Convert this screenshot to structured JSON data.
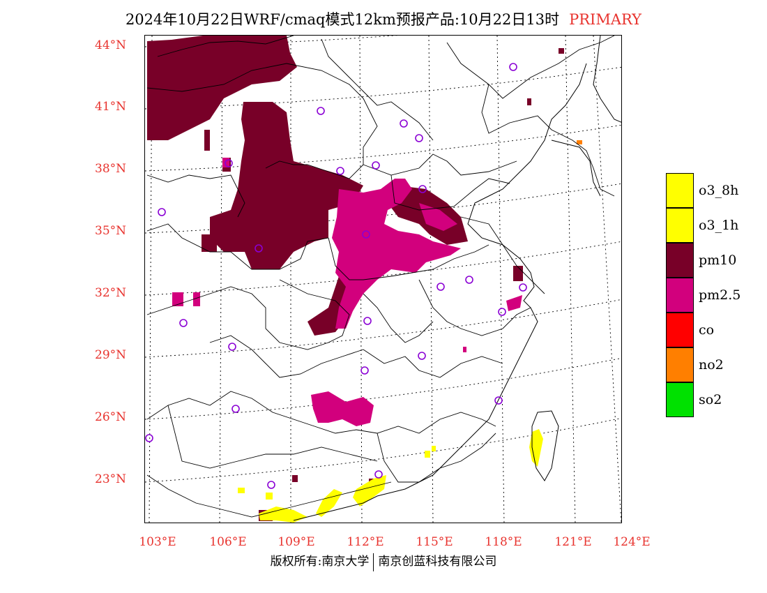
{
  "title": {
    "main": "2024年10月22日WRF/cmaq模式12km预报产品:10月22日13时",
    "tag": "PRIMARY"
  },
  "axes": {
    "lat_labels": [
      "44°N",
      "41°N",
      "38°N",
      "35°N",
      "32°N",
      "29°N",
      "26°N",
      "23°N"
    ],
    "lon_labels": [
      "103°E",
      "106°E",
      "109°E",
      "112°E",
      "115°E",
      "118°E",
      "121°E",
      "124°E"
    ]
  },
  "legend": [
    {
      "label": "o3_8h",
      "color": "#ffff00"
    },
    {
      "label": "o3_1h",
      "color": "#ffff00"
    },
    {
      "label": "pm10",
      "color": "#780028"
    },
    {
      "label": "pm2.5",
      "color": "#d2007d"
    },
    {
      "label": "co",
      "color": "#ff0000"
    },
    {
      "label": "no2",
      "color": "#ff7f00"
    },
    {
      "label": "so2",
      "color": "#00e100"
    }
  ],
  "footer": {
    "left": "版权所有:南京大学",
    "right": "南京创蓝科技有限公司"
  },
  "colors": {
    "pm10": "#780028",
    "pm25": "#d2007d",
    "o3": "#ffff00",
    "no2": "#ff7f00",
    "station": "#8a00d4",
    "axis_label": "#e8332e"
  }
}
